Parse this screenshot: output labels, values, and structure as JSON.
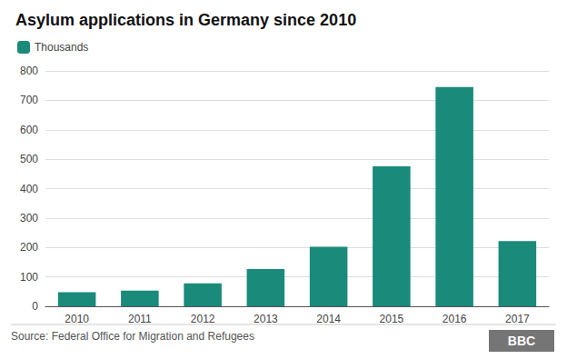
{
  "chart_data": {
    "type": "bar",
    "title": "Asylum applications in Germany since 2010",
    "categories": [
      "2010",
      "2011",
      "2012",
      "2013",
      "2014",
      "2015",
      "2016",
      "2017"
    ],
    "series": [
      {
        "name": "Thousands",
        "color": "#1a8a7a",
        "values": [
          48,
          53,
          78,
          127,
          202,
          476,
          745,
          222
        ]
      }
    ],
    "ylim": [
      0,
      800
    ],
    "yticks": [
      0,
      100,
      200,
      300,
      400,
      500,
      600,
      700,
      800
    ],
    "grid": true,
    "legend": "top-left",
    "annotations": [
      "Source: Federal Office for Migration and Refugees",
      "BBC"
    ]
  }
}
